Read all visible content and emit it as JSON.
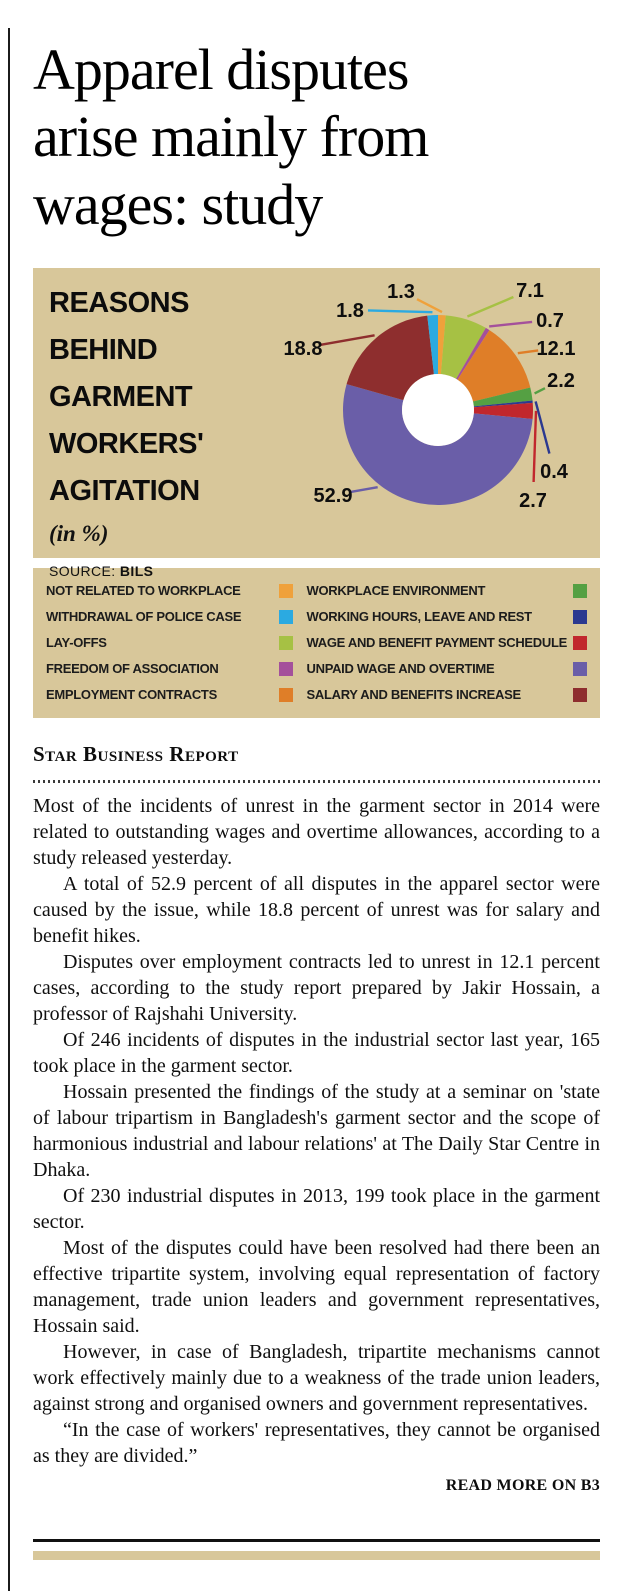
{
  "headline": {
    "lines": [
      "Apparel disputes",
      "arise mainly from",
      "wages: study"
    ]
  },
  "chart": {
    "panel_bg": "#d8c79a",
    "title_lines": [
      "REASONS BEHIND",
      "GARMENT",
      "WORKERS'",
      "AGITATION"
    ],
    "unit_note": "(in %)",
    "source_label": "SOURCE:",
    "source_value": "BILS"
  },
  "chart_data": {
    "type": "pie",
    "title": "REASONS BEHIND GARMENT WORKERS' AGITATION (in %)",
    "source": "BILS",
    "donut": true,
    "slices": [
      {
        "label": "NOT RELATED TO WORKPLACE",
        "value": 1.3,
        "color": "#efa13b"
      },
      {
        "label": "LAY-OFFS",
        "value": 7.1,
        "color": "#a6c144"
      },
      {
        "label": "FREEDOM OF ASSOCIATION",
        "value": 0.7,
        "color": "#a4509b"
      },
      {
        "label": "EMPLOYMENT CONTRACTS",
        "value": 12.1,
        "color": "#df7e28"
      },
      {
        "label": "WORKPLACE ENVIRONMENT",
        "value": 2.2,
        "color": "#55a043"
      },
      {
        "label": "WORKING HOURS, LEAVE AND REST",
        "value": 0.4,
        "color": "#2b3990"
      },
      {
        "label": "WAGE AND BENEFIT PAYMENT SCHEDULE",
        "value": 2.7,
        "color": "#c1272d"
      },
      {
        "label": "UNPAID WAGE AND OVERTIME",
        "value": 52.9,
        "color": "#6a5ea8"
      },
      {
        "label": "SALARY AND BENEFITS INCREASE",
        "value": 18.8,
        "color": "#8e2e2e"
      },
      {
        "label": "WITHDRAWAL OF POLICE CASE",
        "value": 1.8,
        "color": "#2baae1"
      }
    ]
  },
  "legend": {
    "left": [
      {
        "label": "NOT RELATED TO WORKPLACE",
        "color": "#efa13b"
      },
      {
        "label": "WITHDRAWAL OF POLICE CASE",
        "color": "#2baae1"
      },
      {
        "label": "LAY-OFFS",
        "color": "#a6c144"
      },
      {
        "label": "FREEDOM OF ASSOCIATION",
        "color": "#a4509b"
      },
      {
        "label": "EMPLOYMENT CONTRACTS",
        "color": "#df7e28"
      }
    ],
    "right": [
      {
        "label": "WORKPLACE ENVIRONMENT",
        "color": "#55a043"
      },
      {
        "label": "WORKING HOURS, LEAVE AND REST",
        "color": "#2b3990"
      },
      {
        "label": "WAGE AND BENEFIT PAYMENT SCHEDULE",
        "color": "#c1272d"
      },
      {
        "label": "UNPAID WAGE AND OVERTIME",
        "color": "#6a5ea8"
      },
      {
        "label": "SALARY AND BENEFITS INCREASE",
        "color": "#8e2e2e"
      }
    ]
  },
  "byline": "Star Business Report",
  "article": {
    "paragraphs": [
      "Most of the incidents of unrest in the garment sector in 2014 were related to outstanding wages and overtime allowances, according to a study released yesterday.",
      "A total of 52.9 percent of all disputes in the apparel sector were caused by the issue, while 18.8 percent of unrest was for salary and benefit hikes.",
      "Disputes over employment contracts led to unrest in 12.1 percent cases, according to the study report prepared by Jakir Hossain, a professor of Rajshahi University.",
      "Of 246 incidents of disputes in the industrial sector last year, 165 took place in the garment sector.",
      "Hossain presented the findings of the study at a seminar on 'state of labour tripartism in Bangladesh's garment sector and the scope of harmonious industrial and labour relations' at The Daily Star Centre in Dhaka.",
      "Of 230 industrial disputes in 2013, 199 took place in the garment sector.",
      "Most of the disputes could have been resolved had there been an effective tripartite system, involving equal representation of factory management, trade union leaders and government representatives, Hossain said.",
      "However, in case of Bangladesh, tripartite mechanisms cannot work effectively mainly due to a weakness of the trade union leaders, against strong and organised owners and government representatives.",
      "“In the case of workers' representatives, they cannot be organised as they are divided.”"
    ],
    "read_more": "READ MORE ON B3"
  }
}
